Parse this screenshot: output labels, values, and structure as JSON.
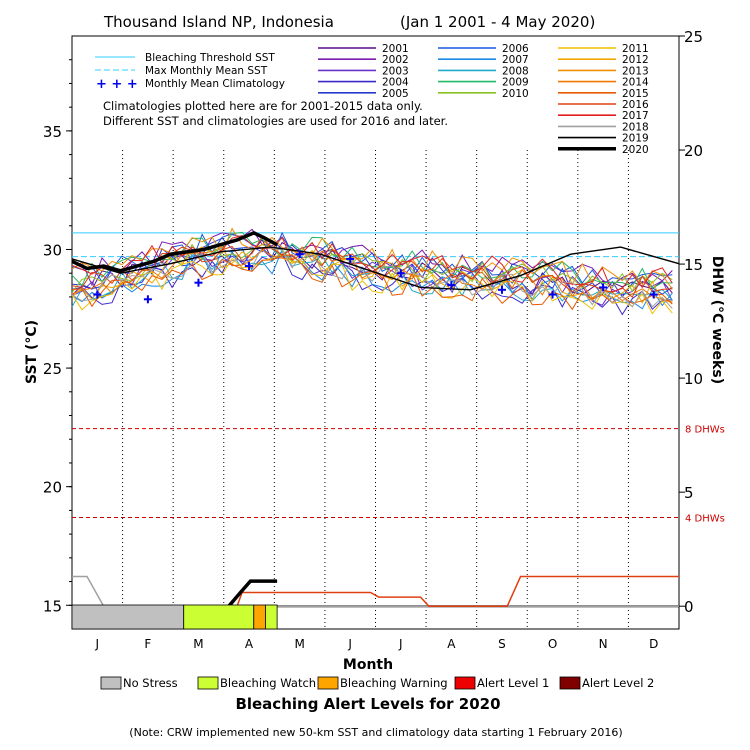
{
  "chart_data": {
    "type": "line",
    "title_left": "Thousand Island NP, Indonesia",
    "title_right": "(Jan 1 2001 - 4 May 2020)",
    "xlabel": "Month",
    "ylabel_left": "SST (°C)",
    "ylabel_right": "DHW (°C weeks)",
    "y_left_range": [
      14,
      39
    ],
    "y_left_ticks": [
      "15",
      "20",
      "25",
      "30",
      "35"
    ],
    "y_right_range": [
      -1,
      25
    ],
    "y_right_ticks": [
      "0",
      "5",
      "10",
      "15",
      "20",
      "25"
    ],
    "months": [
      "J",
      "F",
      "M",
      "A",
      "M",
      "J",
      "J",
      "A",
      "S",
      "O",
      "N",
      "D"
    ],
    "bleaching_threshold_sst": 30.7,
    "max_monthly_mean_sst": 29.7,
    "monthly_mean_climatology": [
      28.1,
      27.9,
      28.6,
      29.3,
      29.8,
      29.6,
      29.0,
      28.5,
      28.3,
      28.1,
      28.4,
      28.1
    ],
    "dhw_reference_lines": [
      {
        "label": "8 DHWs",
        "sst_level": 22.45
      },
      {
        "label": "4 DHWs",
        "sst_level": 18.7
      }
    ],
    "legend_reference": [
      {
        "label": "Bleaching Threshold SST",
        "color": "#33ccff"
      },
      {
        "label": "Max Monthly Mean SST",
        "color": "#33ccff"
      },
      {
        "label": "Monthly Mean Climatology",
        "color": "#0000ee"
      }
    ],
    "years": [
      {
        "label": "2001",
        "color": "#5a0a8a"
      },
      {
        "label": "2002",
        "color": "#7a1ab2"
      },
      {
        "label": "2003",
        "color": "#6a33cc"
      },
      {
        "label": "2004",
        "color": "#3a2acc"
      },
      {
        "label": "2005",
        "color": "#2a3ad0"
      },
      {
        "label": "2006",
        "color": "#1a55e0"
      },
      {
        "label": "2007",
        "color": "#1a88e8"
      },
      {
        "label": "2008",
        "color": "#22aacc"
      },
      {
        "label": "2009",
        "color": "#22b866"
      },
      {
        "label": "2010",
        "color": "#88c022"
      },
      {
        "label": "2011",
        "color": "#f0c000"
      },
      {
        "label": "2012",
        "color": "#f0a800"
      },
      {
        "label": "2013",
        "color": "#f09000"
      },
      {
        "label": "2014",
        "color": "#f07800"
      },
      {
        "label": "2015",
        "color": "#e85a00"
      },
      {
        "label": "2016",
        "color": "#e04010"
      },
      {
        "label": "2017",
        "color": "#e02020"
      },
      {
        "label": "2018",
        "color": "#a0a0a0"
      },
      {
        "label": "2019",
        "color": "#000000"
      },
      {
        "label": "2020",
        "color": "#000000"
      }
    ],
    "series_2020": {
      "name": "2020",
      "x_day": [
        1,
        10,
        20,
        30,
        40,
        50,
        60,
        70,
        80,
        90,
        100,
        110,
        116,
        124
      ],
      "sst": [
        29.5,
        29.2,
        29.3,
        29.1,
        29.3,
        29.5,
        29.8,
        29.9,
        30.0,
        30.2,
        30.4,
        30.7,
        30.5,
        30.2
      ],
      "dhw_x_day": [
        95,
        102,
        108,
        124
      ],
      "dhw": [
        0,
        0.6,
        1.1,
        1.1
      ]
    },
    "series_2019": {
      "name": "2019",
      "x_day": [
        1,
        30,
        60,
        90,
        120,
        150,
        180,
        210,
        240,
        270,
        300,
        330,
        365
      ],
      "sst": [
        29.6,
        29.0,
        29.4,
        29.9,
        30.1,
        29.8,
        29.1,
        28.4,
        28.3,
        28.9,
        29.8,
        30.1,
        29.4
      ]
    },
    "dhw_2019": {
      "x_day": [
        1,
        100,
        103,
        180,
        185,
        210,
        215,
        262,
        270,
        365
      ],
      "dhw": [
        0,
        0,
        0.6,
        0.6,
        0.4,
        0.4,
        0,
        0,
        1.3,
        1.3
      ]
    },
    "dhw_2016": {
      "x_day": [
        1,
        10,
        20,
        365
      ],
      "dhw": [
        1.3,
        1.3,
        0,
        0
      ]
    },
    "climatology_note_line1": "Climatologies plotted here are for 2001-2015 data only.",
    "climatology_note_line2": "Different SST and climatologies are used for 2016 and later.",
    "alert_bar_2020": [
      {
        "status": "No Stress",
        "from_day": 1,
        "to_day": 68
      },
      {
        "status": "Bleaching Watch",
        "from_day": 68,
        "to_day": 110
      },
      {
        "status": "Bleaching Warning",
        "from_day": 110,
        "to_day": 117
      },
      {
        "status": "Bleaching Watch",
        "from_day": 117,
        "to_day": 124
      }
    ],
    "alert_legend": [
      {
        "label": "No Stress",
        "color": "#c0c0c0"
      },
      {
        "label": "Bleaching Watch",
        "color": "#ccff33"
      },
      {
        "label": "Bleaching Warning",
        "color": "#ffa500"
      },
      {
        "label": "Alert Level 1",
        "color": "#ee0000"
      },
      {
        "label": "Alert Level 2",
        "color": "#800000"
      }
    ],
    "alert_title": "Bleaching Alert Levels for 2020",
    "note": "(Note: CRW implemented new 50-km SST and climatology data starting 1 February 2016)"
  }
}
